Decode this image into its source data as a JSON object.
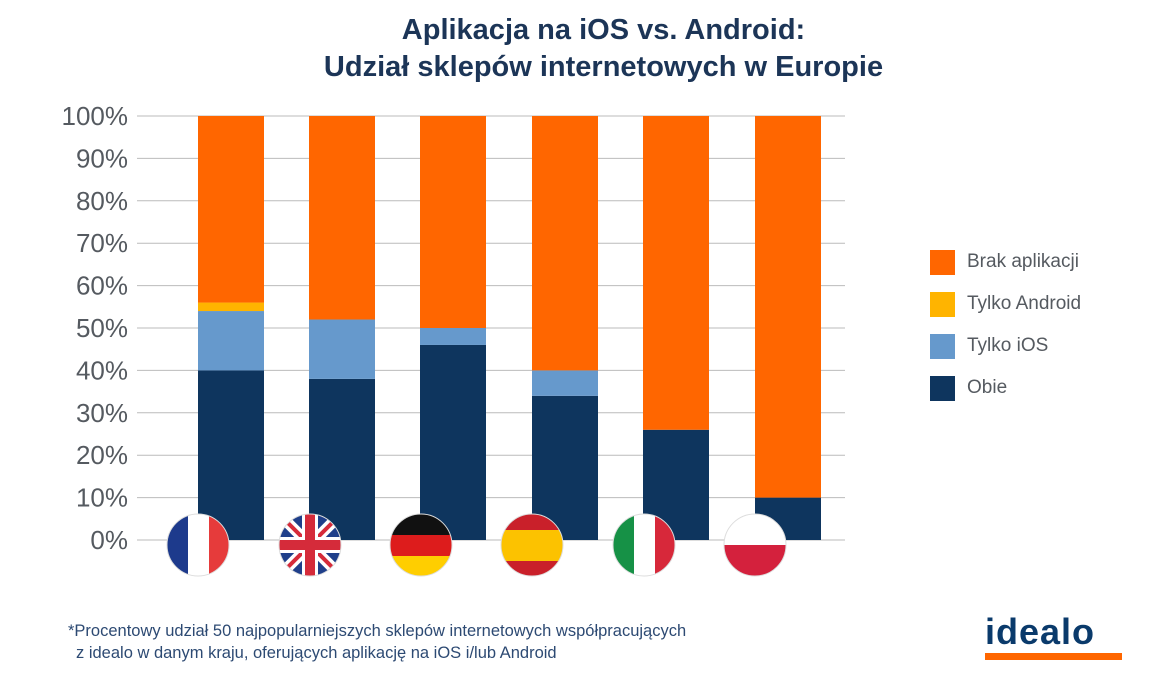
{
  "title_line1": "Aplikacja na iOS vs. Android:",
  "title_line2": "Udział sklepów internetowych w Europie",
  "footnote_line1": "*Procentowy udział 50 najpopularniejszych sklepów internetowych współpracujących",
  "footnote_line2": "z idealo w danym kraju, oferujących aplikację na iOS i/lub Android",
  "logo_text": "idealo",
  "colors": {
    "orange": "#ff6600",
    "yellow": "#ffb400",
    "light_blue": "#6699cc",
    "navy": "#0e355e",
    "grid": "#bbbbbb",
    "tick_text": "#555a60"
  },
  "chart_data": {
    "type": "bar",
    "stacked": true,
    "categories": [
      "France",
      "United Kingdom",
      "Germany",
      "Spain",
      "Italy",
      "Poland"
    ],
    "category_icons": [
      "flag-france",
      "flag-uk",
      "flag-germany",
      "flag-spain",
      "flag-italy",
      "flag-poland"
    ],
    "series": [
      {
        "name": "Obie",
        "color": "#0e355e",
        "values": [
          40,
          38,
          46,
          34,
          26,
          10
        ]
      },
      {
        "name": "Tylko iOS",
        "color": "#6699cc",
        "values": [
          14,
          14,
          4,
          6,
          0,
          0
        ]
      },
      {
        "name": "Tylko Android",
        "color": "#ffb400",
        "values": [
          2,
          0,
          0,
          0,
          0,
          0
        ]
      },
      {
        "name": "Brak aplikacji",
        "color": "#ff6600",
        "values": [
          44,
          48,
          50,
          60,
          74,
          90
        ]
      }
    ],
    "legend_order": [
      "Brak aplikacji",
      "Tylko Android",
      "Tylko iOS",
      "Obie"
    ],
    "y_ticks": [
      "0%",
      "10%",
      "20%",
      "30%",
      "40%",
      "50%",
      "60%",
      "70%",
      "80%",
      "90%",
      "100%"
    ],
    "ylim": [
      0,
      100
    ],
    "grid": true,
    "legend_position": "right"
  }
}
